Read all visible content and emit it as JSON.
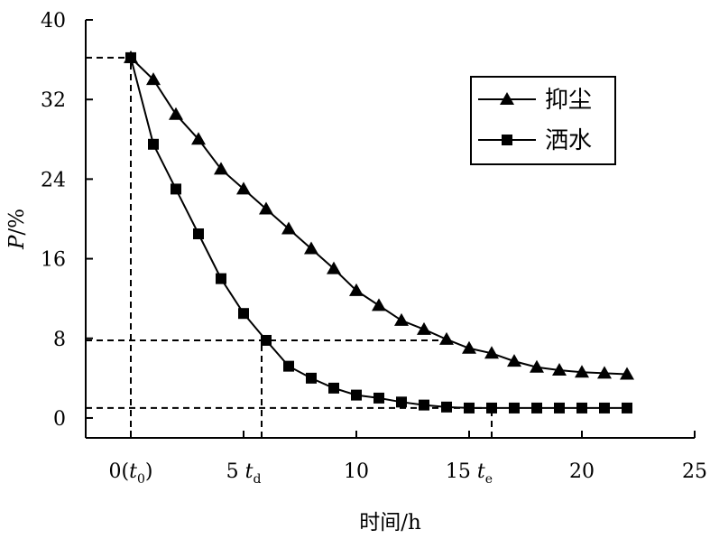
{
  "chart_data": {
    "type": "line",
    "xlabel": "时间/h",
    "ylabel_main": "P",
    "ylabel_unit": "/%",
    "xlim": [
      -2,
      25
    ],
    "ylim": [
      -2,
      40
    ],
    "x_ticks": [
      0,
      5,
      10,
      15,
      20,
      25
    ],
    "y_ticks": [
      0,
      8,
      16,
      24,
      32,
      40
    ],
    "x_tick_labels": {
      "0": {
        "main": "0(",
        "italic": "t",
        "sub": "0",
        "tail": ")"
      },
      "5": {
        "main": "5 ",
        "italic": "t",
        "sub": "d"
      },
      "10": {
        "main": "10"
      },
      "15": {
        "main": "15 ",
        "italic": "t",
        "sub": "e"
      },
      "20": {
        "main": "20"
      },
      "25": {
        "main": "25"
      }
    },
    "series": [
      {
        "name": "抑尘",
        "marker": "triangle",
        "x": [
          0,
          1,
          2,
          3,
          4,
          5,
          6,
          7,
          8,
          9,
          10,
          11,
          12,
          13,
          14,
          15,
          16,
          17,
          18,
          19,
          20,
          21,
          22
        ],
        "y": [
          36.2,
          34,
          30.5,
          28,
          25,
          23,
          21,
          19,
          17,
          15,
          12.8,
          11.3,
          9.8,
          8.9,
          7.9,
          7,
          6.5,
          5.7,
          5.1,
          4.8,
          4.6,
          4.5,
          4.4
        ]
      },
      {
        "name": "洒水",
        "marker": "square",
        "x": [
          0,
          1,
          2,
          3,
          4,
          5,
          6,
          7,
          8,
          9,
          10,
          11,
          12,
          13,
          14,
          15,
          16,
          17,
          18,
          19,
          20,
          21,
          22
        ],
        "y": [
          36.2,
          27.5,
          23,
          18.5,
          14,
          10.5,
          7.8,
          5.2,
          4,
          3,
          2.3,
          2,
          1.6,
          1.3,
          1.1,
          1,
          1,
          1,
          1,
          1,
          1,
          1,
          1
        ]
      }
    ],
    "reference_lines": [
      {
        "kind": "h",
        "y": 36.2,
        "x_from": -2,
        "x_to": 0
      },
      {
        "kind": "v",
        "x": 0,
        "y_from": -2,
        "y_to": 36.2
      },
      {
        "kind": "h",
        "y": 7.8,
        "x_from": -2,
        "x_to": 14
      },
      {
        "kind": "v",
        "x": 5.8,
        "y_from": -2,
        "y_to": 7.8
      },
      {
        "kind": "h",
        "y": 1.0,
        "x_from": -2,
        "x_to": 16
      },
      {
        "kind": "v",
        "x": 16,
        "y_from": -2,
        "y_to": 1.0
      }
    ],
    "legend_position": "top-right",
    "grid": false
  }
}
